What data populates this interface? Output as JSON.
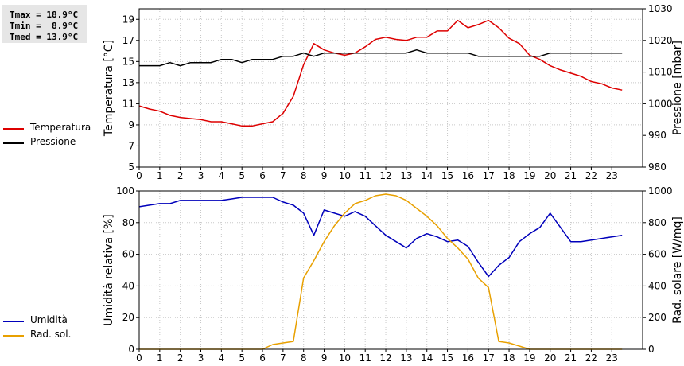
{
  "stats": {
    "tmax": "Tmax = 18.9°C",
    "tmin": "Tmin =  8.9°C",
    "tmed": "Tmed = 13.9°C"
  },
  "legend_top": [
    {
      "label": "Temperatura",
      "color": "#dd0000"
    },
    {
      "label": "Pressione",
      "color": "#000000"
    }
  ],
  "legend_bottom": [
    {
      "label": "Umidità",
      "color": "#0000bb"
    },
    {
      "label": "Rad. sol.",
      "color": "#e8a000"
    }
  ],
  "chart_data": [
    {
      "type": "line",
      "xlim": [
        0,
        24.5
      ],
      "xticks": [
        0,
        1,
        2,
        3,
        4,
        5,
        6,
        7,
        8,
        9,
        10,
        11,
        12,
        13,
        14,
        15,
        16,
        17,
        18,
        19,
        20,
        21,
        22,
        23
      ],
      "grid": true,
      "ylabel": "Temperatura [°C]",
      "ylim": [
        5,
        20
      ],
      "yticks": [
        5,
        7,
        9,
        11,
        13,
        15,
        17,
        19
      ],
      "y2label": "Pressione [mbar]",
      "y2lim": [
        980,
        1030
      ],
      "y2ticks": [
        980,
        990,
        1000,
        1010,
        1020,
        1030
      ],
      "series": [
        {
          "name": "Temperatura",
          "axis": "left",
          "color": "#dd0000",
          "x": [
            0,
            0.5,
            1,
            1.5,
            2,
            2.5,
            3,
            3.5,
            4,
            4.5,
            5,
            5.5,
            6,
            6.5,
            7,
            7.5,
            8,
            8.5,
            9,
            9.5,
            10,
            10.5,
            11,
            11.5,
            12,
            12.5,
            13,
            13.5,
            14,
            14.5,
            15,
            15.5,
            16,
            16.5,
            17,
            17.5,
            18,
            18.5,
            19,
            19.5,
            20,
            20.5,
            21,
            21.5,
            22,
            22.5,
            23,
            23.5
          ],
          "values": [
            10.8,
            10.5,
            10.3,
            9.9,
            9.7,
            9.6,
            9.5,
            9.3,
            9.3,
            9.1,
            8.9,
            8.9,
            9.1,
            9.3,
            10.1,
            11.7,
            14.7,
            16.7,
            16.1,
            15.8,
            15.6,
            15.8,
            16.4,
            17.1,
            17.3,
            17.1,
            17.0,
            17.3,
            17.3,
            17.9,
            17.9,
            18.9,
            18.2,
            18.5,
            18.9,
            18.2,
            17.2,
            16.7,
            15.6,
            15.2,
            14.6,
            14.2,
            13.9,
            13.6,
            13.1,
            12.9,
            12.5,
            12.3
          ]
        },
        {
          "name": "Pressione",
          "axis": "right",
          "color": "#000000",
          "x": [
            0,
            0.5,
            1,
            1.5,
            2,
            2.5,
            3,
            3.5,
            4,
            4.5,
            5,
            5.5,
            6,
            6.5,
            7,
            7.5,
            8,
            8.5,
            9,
            9.5,
            10,
            10.5,
            11,
            11.5,
            12,
            12.5,
            13,
            13.5,
            14,
            14.5,
            15,
            15.5,
            16,
            16.5,
            17,
            17.5,
            18,
            18.5,
            19,
            19.5,
            20,
            20.5,
            21,
            21.5,
            22,
            22.5,
            23,
            23.5
          ],
          "values": [
            1012,
            1012,
            1012,
            1013,
            1012,
            1013,
            1013,
            1013,
            1014,
            1014,
            1013,
            1014,
            1014,
            1014,
            1015,
            1015,
            1016,
            1015,
            1016,
            1016,
            1016,
            1016,
            1016,
            1016,
            1016,
            1016,
            1016,
            1017,
            1016,
            1016,
            1016,
            1016,
            1016,
            1015,
            1015,
            1015,
            1015,
            1015,
            1015,
            1015,
            1016,
            1016,
            1016,
            1016,
            1016,
            1016,
            1016,
            1016
          ]
        }
      ]
    },
    {
      "type": "line",
      "xlim": [
        0,
        24.5
      ],
      "xticks": [
        0,
        1,
        2,
        3,
        4,
        5,
        6,
        7,
        8,
        9,
        10,
        11,
        12,
        13,
        14,
        15,
        16,
        17,
        18,
        19,
        20,
        21,
        22,
        23
      ],
      "grid": true,
      "ylabel": "Umidità relativa [%]",
      "ylim": [
        0,
        100
      ],
      "yticks": [
        0,
        20,
        40,
        60,
        80,
        100
      ],
      "y2label": "Rad. solare [W/mq]",
      "y2lim": [
        0,
        1000
      ],
      "y2ticks": [
        0,
        200,
        400,
        600,
        800,
        1000
      ],
      "series": [
        {
          "name": "Umidità",
          "axis": "left",
          "color": "#0000bb",
          "x": [
            0,
            0.5,
            1,
            1.5,
            2,
            2.5,
            3,
            3.5,
            4,
            4.5,
            5,
            5.5,
            6,
            6.5,
            7,
            7.5,
            8,
            8.5,
            9,
            9.5,
            10,
            10.5,
            11,
            11.5,
            12,
            12.5,
            13,
            13.5,
            14,
            14.5,
            15,
            15.5,
            16,
            16.5,
            17,
            17.5,
            18,
            18.5,
            19,
            19.5,
            20,
            20.5,
            21,
            21.5,
            22,
            22.5,
            23,
            23.5
          ],
          "values": [
            90,
            91,
            92,
            92,
            94,
            94,
            94,
            94,
            94,
            95,
            96,
            96,
            96,
            96,
            93,
            91,
            86,
            72,
            88,
            86,
            84,
            87,
            84,
            78,
            72,
            68,
            64,
            70,
            73,
            71,
            68,
            69,
            65,
            55,
            46,
            53,
            58,
            68,
            73,
            77,
            86,
            77,
            68,
            68,
            69,
            70,
            71,
            72
          ]
        },
        {
          "name": "Rad. sol.",
          "axis": "right",
          "color": "#e8a000",
          "x": [
            0,
            0.5,
            1,
            1.5,
            2,
            2.5,
            3,
            3.5,
            4,
            4.5,
            5,
            5.5,
            6,
            6.5,
            7,
            7.5,
            8,
            8.5,
            9,
            9.5,
            10,
            10.5,
            11,
            11.5,
            12,
            12.5,
            13,
            13.5,
            14,
            14.5,
            15,
            15.5,
            16,
            16.5,
            17,
            17.5,
            18,
            18.5,
            19,
            19.5,
            20,
            20.5,
            21,
            21.5,
            22,
            22.5,
            23,
            23.5
          ],
          "values": [
            0,
            0,
            0,
            0,
            0,
            0,
            0,
            0,
            0,
            0,
            0,
            0,
            0,
            30,
            40,
            50,
            450,
            560,
            680,
            780,
            860,
            920,
            940,
            970,
            980,
            970,
            940,
            890,
            840,
            780,
            700,
            640,
            570,
            450,
            390,
            50,
            40,
            20,
            0,
            0,
            0,
            0,
            0,
            0,
            0,
            0,
            0,
            0
          ]
        }
      ]
    }
  ]
}
